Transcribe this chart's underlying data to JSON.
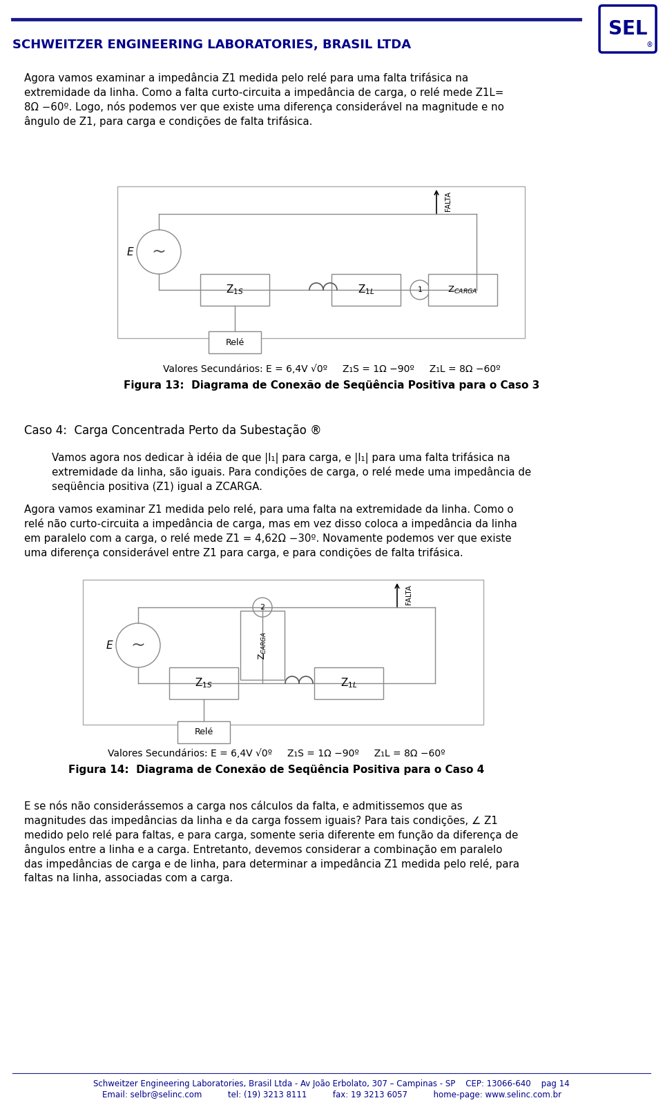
{
  "bg_color": "#ffffff",
  "text_color": "#000000",
  "header_color": "#00008B",
  "header_line_color": "#1a1a8c",
  "header_text": "SCHWEITZER ENGINEERING LABORATORIES, BRASIL LTDA",
  "sel_logo_text": "SEL",
  "footer_line1": "Schweitzer Engineering Laboratories, Brasil Ltda - Av João Erbolato, 307 – Campinas - SP    CEP: 13066-640    pag 14",
  "footer_line2": "Email: selbr@selinc.com          tel: (19) 3213 8111          fax: 19 3213 6057          home-page: www.selinc.com.br",
  "para1_lines": [
    "Agora vamos examinar a impedância Z1 medida pelo relé para uma falta trifásica na",
    "extremidade da linha. Como a falta curto-circuita a impedância de carga, o relé mede Z1L=",
    "8Ω −60º. Logo, nós podemos ver que existe uma diferença considerável na magnitude e no",
    "ângulo de Z1, para carga e condições de falta trifásica."
  ],
  "fig13_val_line": "Valores Secundários: E = 6,4V √0º     Z₁S = 1Ω −90º     Z₁L = 8Ω −60º",
  "fig13_title": "Figura 13:  Diagrama de Conexão de Seqüência Positiva para o Caso 3",
  "caso4_heading": "Caso 4:  Carga Concentrada Perto da Subestação ®",
  "caso4p1_lines": [
    "Vamos agora nos dedicar à idéia de que |I₁| para carga, e |I₁| para uma falta trifásica na",
    "extremidade da linha, são iguais. Para condições de carga, o relé mede uma impedância de",
    "seqüência positiva (Z1) igual a ZCARGA."
  ],
  "caso4p2_lines": [
    "Agora vamos examinar Z1 medida pelo relé, para uma falta na extremidade da linha. Como o",
    "relé não curto-circuita a impedância de carga, mas em vez disso coloca a impedância da linha",
    "em paralelo com a carga, o relé mede Z1 = 4,62Ω −30º. Novamente podemos ver que existe",
    "uma diferença considerável entre Z1 para carga, e para condições de falta trifásica."
  ],
  "fig14_val_line": "Valores Secundários: E = 6,4V √0º     Z₁S = 1Ω −90º     Z₁L = 8Ω −60º",
  "fig14_title": "Figura 14:  Diagrama de Conexão de Seqüência Positiva para o Caso 4",
  "final_lines": [
    "E se nós não considerássemos a carga nos cálculos da falta, e admitissemos que as",
    "magnitudes das impedâncias da linha e da carga fossem iguais? Para tais condições, ∠ Z1",
    "medido pelo relé para faltas, e para carga, somente seria diferente em função da diferença de",
    "ângulos entre a linha e a carga. Entretanto, devemos considerar a combinação em paralelo",
    "das impedâncias de carga e de linha, para determinar a impedância Z1 medida pelo relé, para",
    "faltas na linha, associadas com a carga."
  ]
}
